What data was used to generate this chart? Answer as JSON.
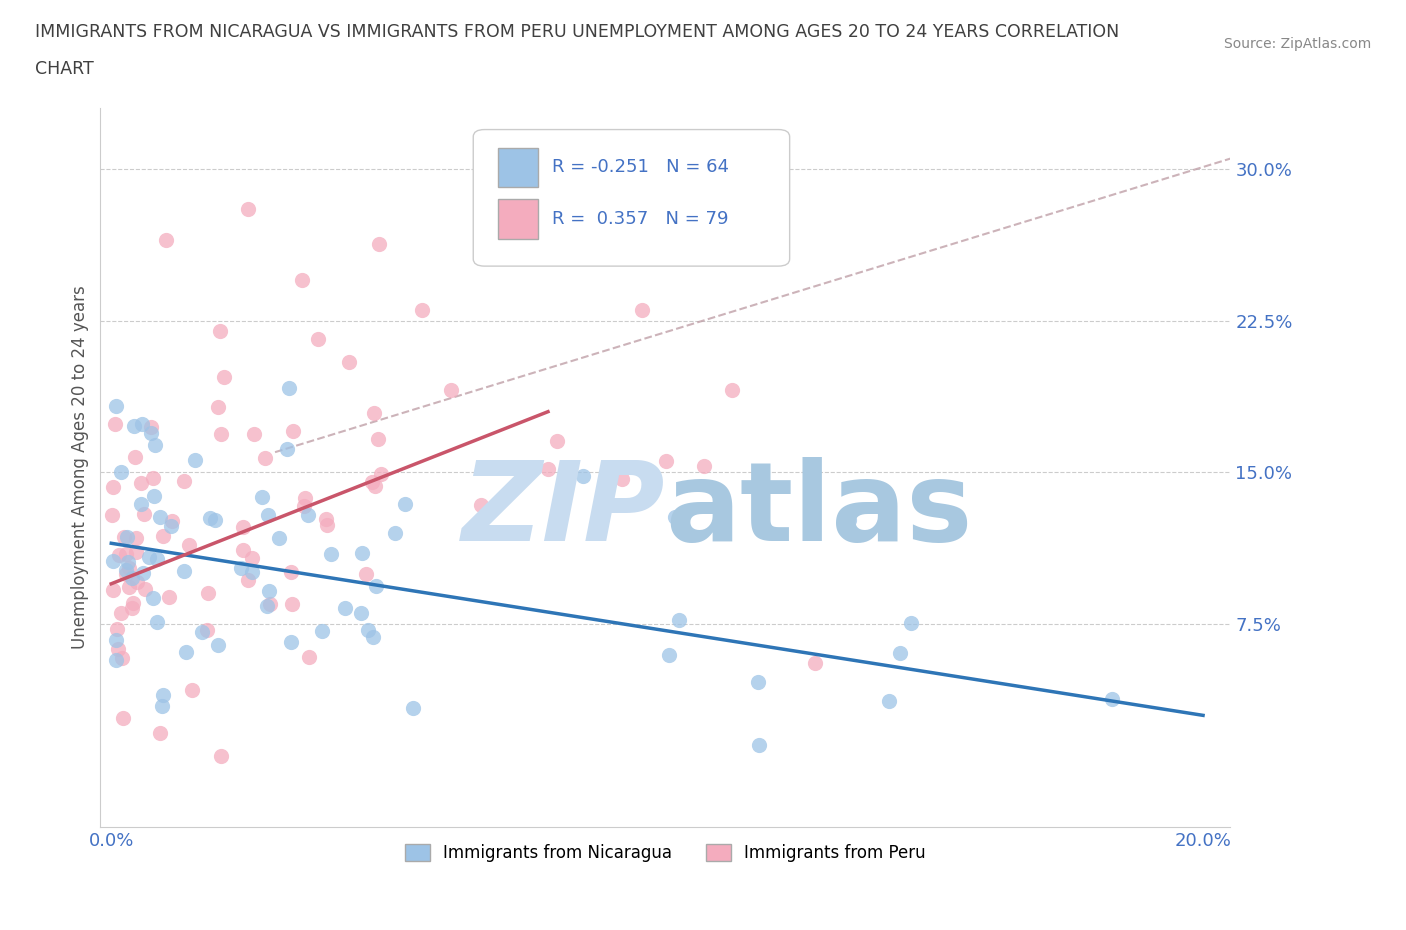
{
  "title_line1": "IMMIGRANTS FROM NICARAGUA VS IMMIGRANTS FROM PERU UNEMPLOYMENT AMONG AGES 20 TO 24 YEARS CORRELATION",
  "title_line2": "CHART",
  "source_text": "Source: ZipAtlas.com",
  "ylabel": "Unemployment Among Ages 20 to 24 years",
  "xlim": [
    -0.002,
    0.205
  ],
  "ylim": [
    -0.025,
    0.33
  ],
  "yticks": [
    0.075,
    0.15,
    0.225,
    0.3
  ],
  "ytick_labels": [
    "7.5%",
    "15.0%",
    "22.5%",
    "30.0%"
  ],
  "xticks": [
    0.0,
    0.05,
    0.1,
    0.15,
    0.2
  ],
  "xtick_labels": [
    "0.0%",
    "",
    "",
    "",
    "20.0%"
  ],
  "nicaragua_color": "#9DC3E6",
  "peru_color": "#F4ACBE",
  "nicaragua_R": -0.251,
  "nicaragua_N": 64,
  "peru_R": 0.357,
  "peru_N": 79,
  "nicaragua_line_color": "#2E75B6",
  "peru_line_color": "#C9556A",
  "dashed_line_color": "#C0A0A8",
  "grid_color": "#CCCCCC",
  "title_color": "#404040",
  "axis_label_color": "#4472C4",
  "watermark_color": "#C8DCF0",
  "legend_label_1": "Immigrants from Nicaragua",
  "legend_label_2": "Immigrants from Peru",
  "nic_line_x0": 0.0,
  "nic_line_y0": 0.115,
  "nic_line_x1": 0.2,
  "nic_line_y1": 0.03,
  "peru_line_x0": 0.0,
  "peru_line_y0": 0.095,
  "peru_line_x1": 0.08,
  "peru_line_y1": 0.18,
  "dash_line_x0": 0.03,
  "dash_line_y0": 0.16,
  "dash_line_x1": 0.205,
  "dash_line_y1": 0.305
}
